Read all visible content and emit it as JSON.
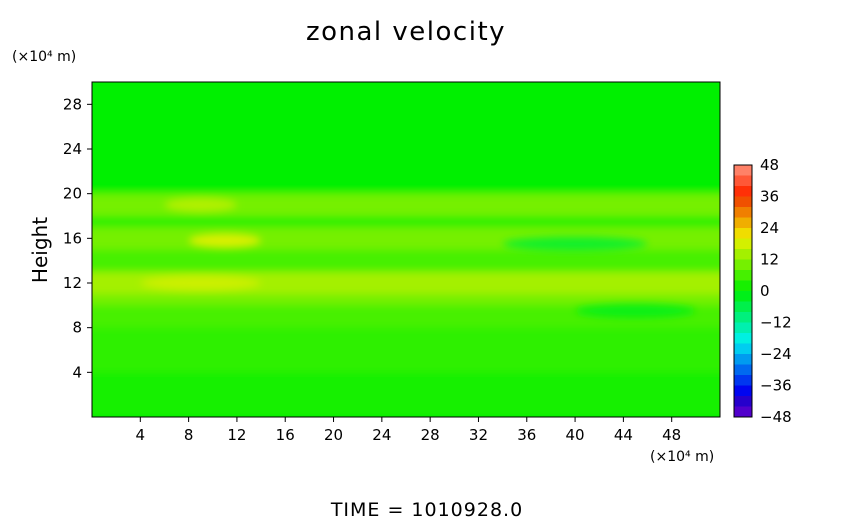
{
  "chart_data": {
    "type": "heatmap",
    "title": "zonal velocity",
    "xlabel": "",
    "x_unit": "(×10⁴ m)",
    "ylabel": "Height",
    "y_unit": "(×10⁴ m)",
    "xlim": [
      0,
      52
    ],
    "ylim": [
      0,
      30
    ],
    "x_ticks": [
      4,
      8,
      12,
      16,
      20,
      24,
      28,
      32,
      36,
      40,
      44,
      48
    ],
    "y_ticks": [
      4,
      8,
      12,
      16,
      20,
      24,
      28
    ],
    "colorbar": {
      "ticks": [
        48,
        36,
        24,
        12,
        0,
        -12,
        -24,
        -36,
        -48
      ],
      "range": [
        -48,
        48
      ],
      "step": 4
    },
    "layers": [
      {
        "y_bottom": 0,
        "y_top": 4,
        "value": 2
      },
      {
        "y_bottom": 4,
        "y_top": 8,
        "value": 4
      },
      {
        "y_bottom": 8,
        "y_top": 10,
        "value": 6
      },
      {
        "y_bottom": 10,
        "y_top": 11,
        "value": 10
      },
      {
        "y_bottom": 11,
        "y_top": 13,
        "value": 14
      },
      {
        "y_bottom": 13,
        "y_top": 15,
        "value": 6
      },
      {
        "y_bottom": 15,
        "y_top": 17,
        "value": 10
      },
      {
        "y_bottom": 17,
        "y_top": 18,
        "value": 4
      },
      {
        "y_bottom": 18,
        "y_top": 20,
        "value": 10
      },
      {
        "y_bottom": 20,
        "y_top": 30,
        "value": 0
      }
    ],
    "annotations": [
      {
        "x_from": 8,
        "x_to": 14,
        "y": 15.8,
        "value": 20
      },
      {
        "x_from": 4,
        "x_to": 14,
        "y": 12,
        "value": 18
      },
      {
        "x_from": 6,
        "x_to": 12,
        "y": 19,
        "value": 16
      },
      {
        "x_from": 34,
        "x_to": 46,
        "y": 15.5,
        "value": -4
      },
      {
        "x_from": 40,
        "x_to": 50,
        "y": 9.5,
        "value": -2
      }
    ]
  },
  "footer": {
    "time_label": "TIME = 1010928.0"
  }
}
